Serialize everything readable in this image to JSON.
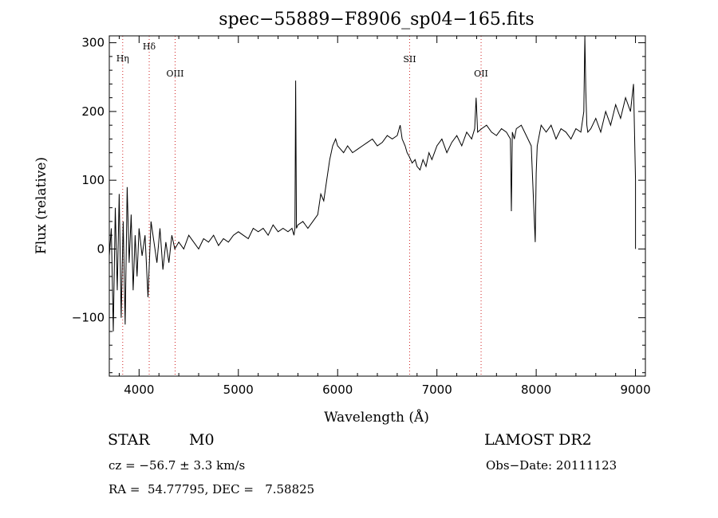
{
  "chart_data": {
    "type": "line",
    "title": "spec−55889−F8906_sp04−165.fits",
    "xlabel": "Wavelength (Å)",
    "ylabel": "Flux (relative)",
    "xlim": [
      3700,
      9100
    ],
    "ylim": [
      -185,
      310
    ],
    "xticks": [
      4000,
      5000,
      6000,
      7000,
      8000,
      9000
    ],
    "xtick_labels": [
      "4000",
      "5000",
      "6000",
      "7000",
      "8000",
      "9000"
    ],
    "yticks": [
      -100,
      0,
      100,
      200,
      300
    ],
    "ytick_labels": [
      "−100",
      "0",
      "100",
      "200",
      "300"
    ],
    "grid": false,
    "line_markers": [
      {
        "label": "Hη",
        "x": 3835
      },
      {
        "label": "Hδ",
        "x": 4102
      },
      {
        "label": "OIII",
        "x": 4363
      },
      {
        "label": "SII",
        "x": 6725
      },
      {
        "label": "OII",
        "x": 7445
      }
    ],
    "marker_color": "#d02020",
    "series": [
      {
        "color": "#000000",
        "x": [
          3700,
          3720,
          3740,
          3760,
          3780,
          3800,
          3820,
          3840,
          3860,
          3880,
          3900,
          3920,
          3940,
          3960,
          3980,
          4000,
          4030,
          4060,
          4090,
          4120,
          4150,
          4180,
          4210,
          4240,
          4270,
          4300,
          4330,
          4360,
          4400,
          4450,
          4500,
          4550,
          4600,
          4650,
          4700,
          4750,
          4800,
          4850,
          4900,
          4950,
          5000,
          5050,
          5100,
          5150,
          5200,
          5250,
          5300,
          5350,
          5400,
          5450,
          5500,
          5540,
          5560,
          5570,
          5577,
          5585,
          5600,
          5650,
          5700,
          5750,
          5800,
          5830,
          5860,
          5890,
          5920,
          5950,
          5980,
          6000,
          6030,
          6060,
          6100,
          6150,
          6200,
          6250,
          6300,
          6350,
          6400,
          6450,
          6500,
          6550,
          6600,
          6630,
          6650,
          6680,
          6700,
          6720,
          6750,
          6780,
          6800,
          6830,
          6860,
          6890,
          6920,
          6950,
          7000,
          7050,
          7100,
          7150,
          7200,
          7250,
          7300,
          7350,
          7380,
          7395,
          7410,
          7450,
          7500,
          7550,
          7600,
          7650,
          7700,
          7740,
          7750,
          7760,
          7780,
          7800,
          7850,
          7900,
          7950,
          7990,
          8000,
          8010,
          8050,
          8100,
          8150,
          8200,
          8250,
          8300,
          8350,
          8400,
          8450,
          8480,
          8490,
          8500,
          8510,
          8520,
          8550,
          8600,
          8650,
          8700,
          8750,
          8800,
          8850,
          8900,
          8950,
          8980,
          9000,
          9000
        ],
        "y": [
          -10,
          30,
          -120,
          60,
          -60,
          80,
          -100,
          40,
          -110,
          90,
          -20,
          50,
          -60,
          20,
          -40,
          30,
          -10,
          20,
          -70,
          40,
          10,
          -20,
          30,
          -30,
          10,
          -20,
          20,
          0,
          10,
          0,
          20,
          10,
          0,
          15,
          10,
          20,
          5,
          15,
          10,
          20,
          25,
          20,
          15,
          30,
          25,
          30,
          20,
          35,
          25,
          30,
          25,
          30,
          20,
          30,
          245,
          30,
          35,
          40,
          30,
          40,
          50,
          80,
          70,
          100,
          130,
          150,
          160,
          150,
          145,
          140,
          150,
          140,
          145,
          150,
          155,
          160,
          150,
          155,
          165,
          160,
          165,
          180,
          160,
          150,
          140,
          135,
          125,
          130,
          120,
          115,
          130,
          120,
          140,
          130,
          150,
          160,
          140,
          155,
          165,
          150,
          170,
          160,
          175,
          220,
          170,
          175,
          180,
          170,
          165,
          175,
          170,
          160,
          55,
          170,
          160,
          175,
          180,
          165,
          150,
          10,
          110,
          150,
          180,
          170,
          180,
          160,
          175,
          170,
          160,
          175,
          170,
          200,
          330,
          230,
          180,
          170,
          175,
          190,
          170,
          200,
          180,
          210,
          190,
          220,
          200,
          240,
          100,
          0
        ]
      }
    ]
  },
  "info": {
    "class_label": "STAR",
    "subclass": "M0",
    "survey": "LAMOST DR2",
    "redshift": "cz = −56.7 ± 3.3 km/s",
    "obs_date": "Obs−Date: 20111123",
    "coords": "RA =  54.77795, DEC =   7.58825"
  }
}
